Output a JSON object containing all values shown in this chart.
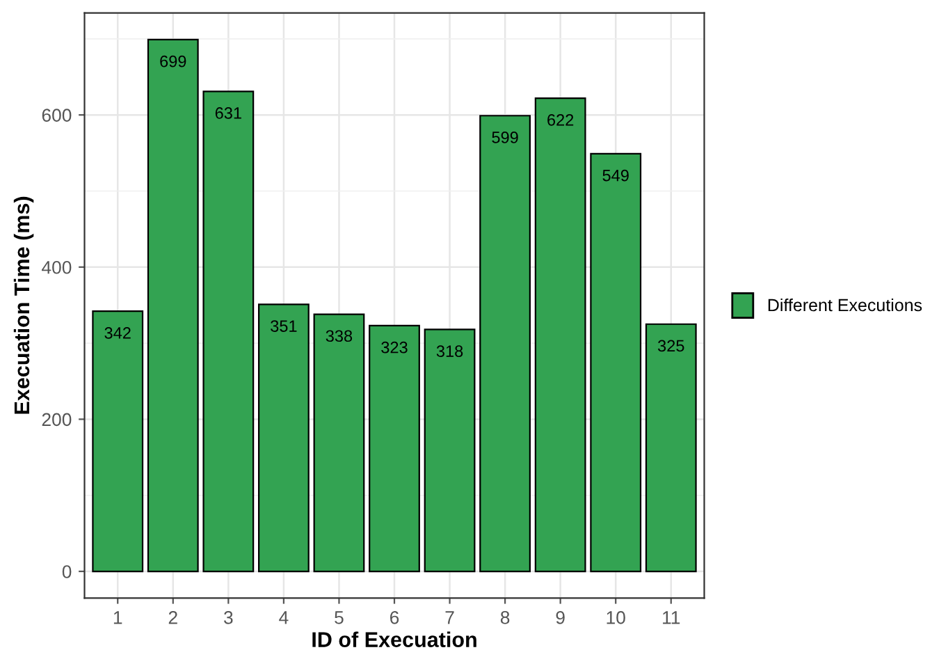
{
  "chart_data": {
    "type": "bar",
    "xlabel": "ID of Execuation",
    "ylabel": "Execuation Time (ms)",
    "categories": [
      "1",
      "2",
      "3",
      "4",
      "5",
      "6",
      "7",
      "8",
      "9",
      "10",
      "11"
    ],
    "series": [
      {
        "name": "Different Executions",
        "color": "#33a352",
        "values": [
          342,
          699,
          631,
          351,
          338,
          323,
          318,
          599,
          622,
          549,
          325
        ]
      }
    ],
    "ylim": [
      -35,
      734
    ],
    "yticks": [
      0,
      200,
      400,
      600
    ],
    "grid": true,
    "legend": "right",
    "data_labels": true
  }
}
